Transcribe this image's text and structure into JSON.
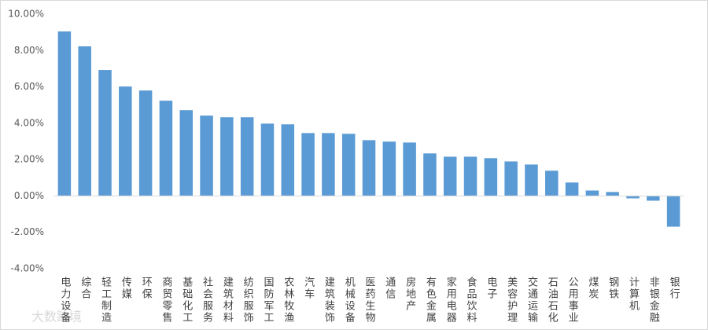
{
  "chart_data": {
    "type": "bar",
    "categories": [
      "电力设备",
      "综合",
      "轻工制造",
      "传媒",
      "环保",
      "商贸零售",
      "基础化工",
      "社会服务",
      "建筑材料",
      "纺织服饰",
      "国防军工",
      "农林牧渔",
      "汽车",
      "建筑装饰",
      "机械设备",
      "医药生物",
      "通信",
      "房地产",
      "有色金属",
      "家用电器",
      "食品饮料",
      "电子",
      "美容护理",
      "交通运输",
      "石油石化",
      "公用事业",
      "煤炭",
      "钢铁",
      "计算机",
      "非银金融",
      "银行"
    ],
    "values": [
      9.05,
      8.23,
      6.93,
      6.02,
      5.8,
      5.24,
      4.72,
      4.42,
      4.33,
      4.33,
      3.98,
      3.94,
      3.46,
      3.46,
      3.42,
      3.07,
      2.99,
      2.94,
      2.34,
      2.16,
      2.16,
      2.08,
      1.9,
      1.73,
      1.39,
      0.74,
      0.3,
      0.22,
      -0.13,
      -0.26,
      -1.69
    ],
    "color": "#5b9bd5",
    "ylim": [
      -4,
      10
    ],
    "yticks": [
      {
        "value": -4,
        "label": "-4.00%"
      },
      {
        "value": -2,
        "label": "-2.00%"
      },
      {
        "value": 0,
        "label": "0.00%"
      },
      {
        "value": 2,
        "label": "2.00%"
      },
      {
        "value": 4,
        "label": "4.00%"
      },
      {
        "value": 6,
        "label": "6.00%"
      },
      {
        "value": 8,
        "label": "8.00%"
      },
      {
        "value": 10,
        "label": "10.00%"
      }
    ],
    "grid": false
  },
  "watermark": "大数跨境"
}
